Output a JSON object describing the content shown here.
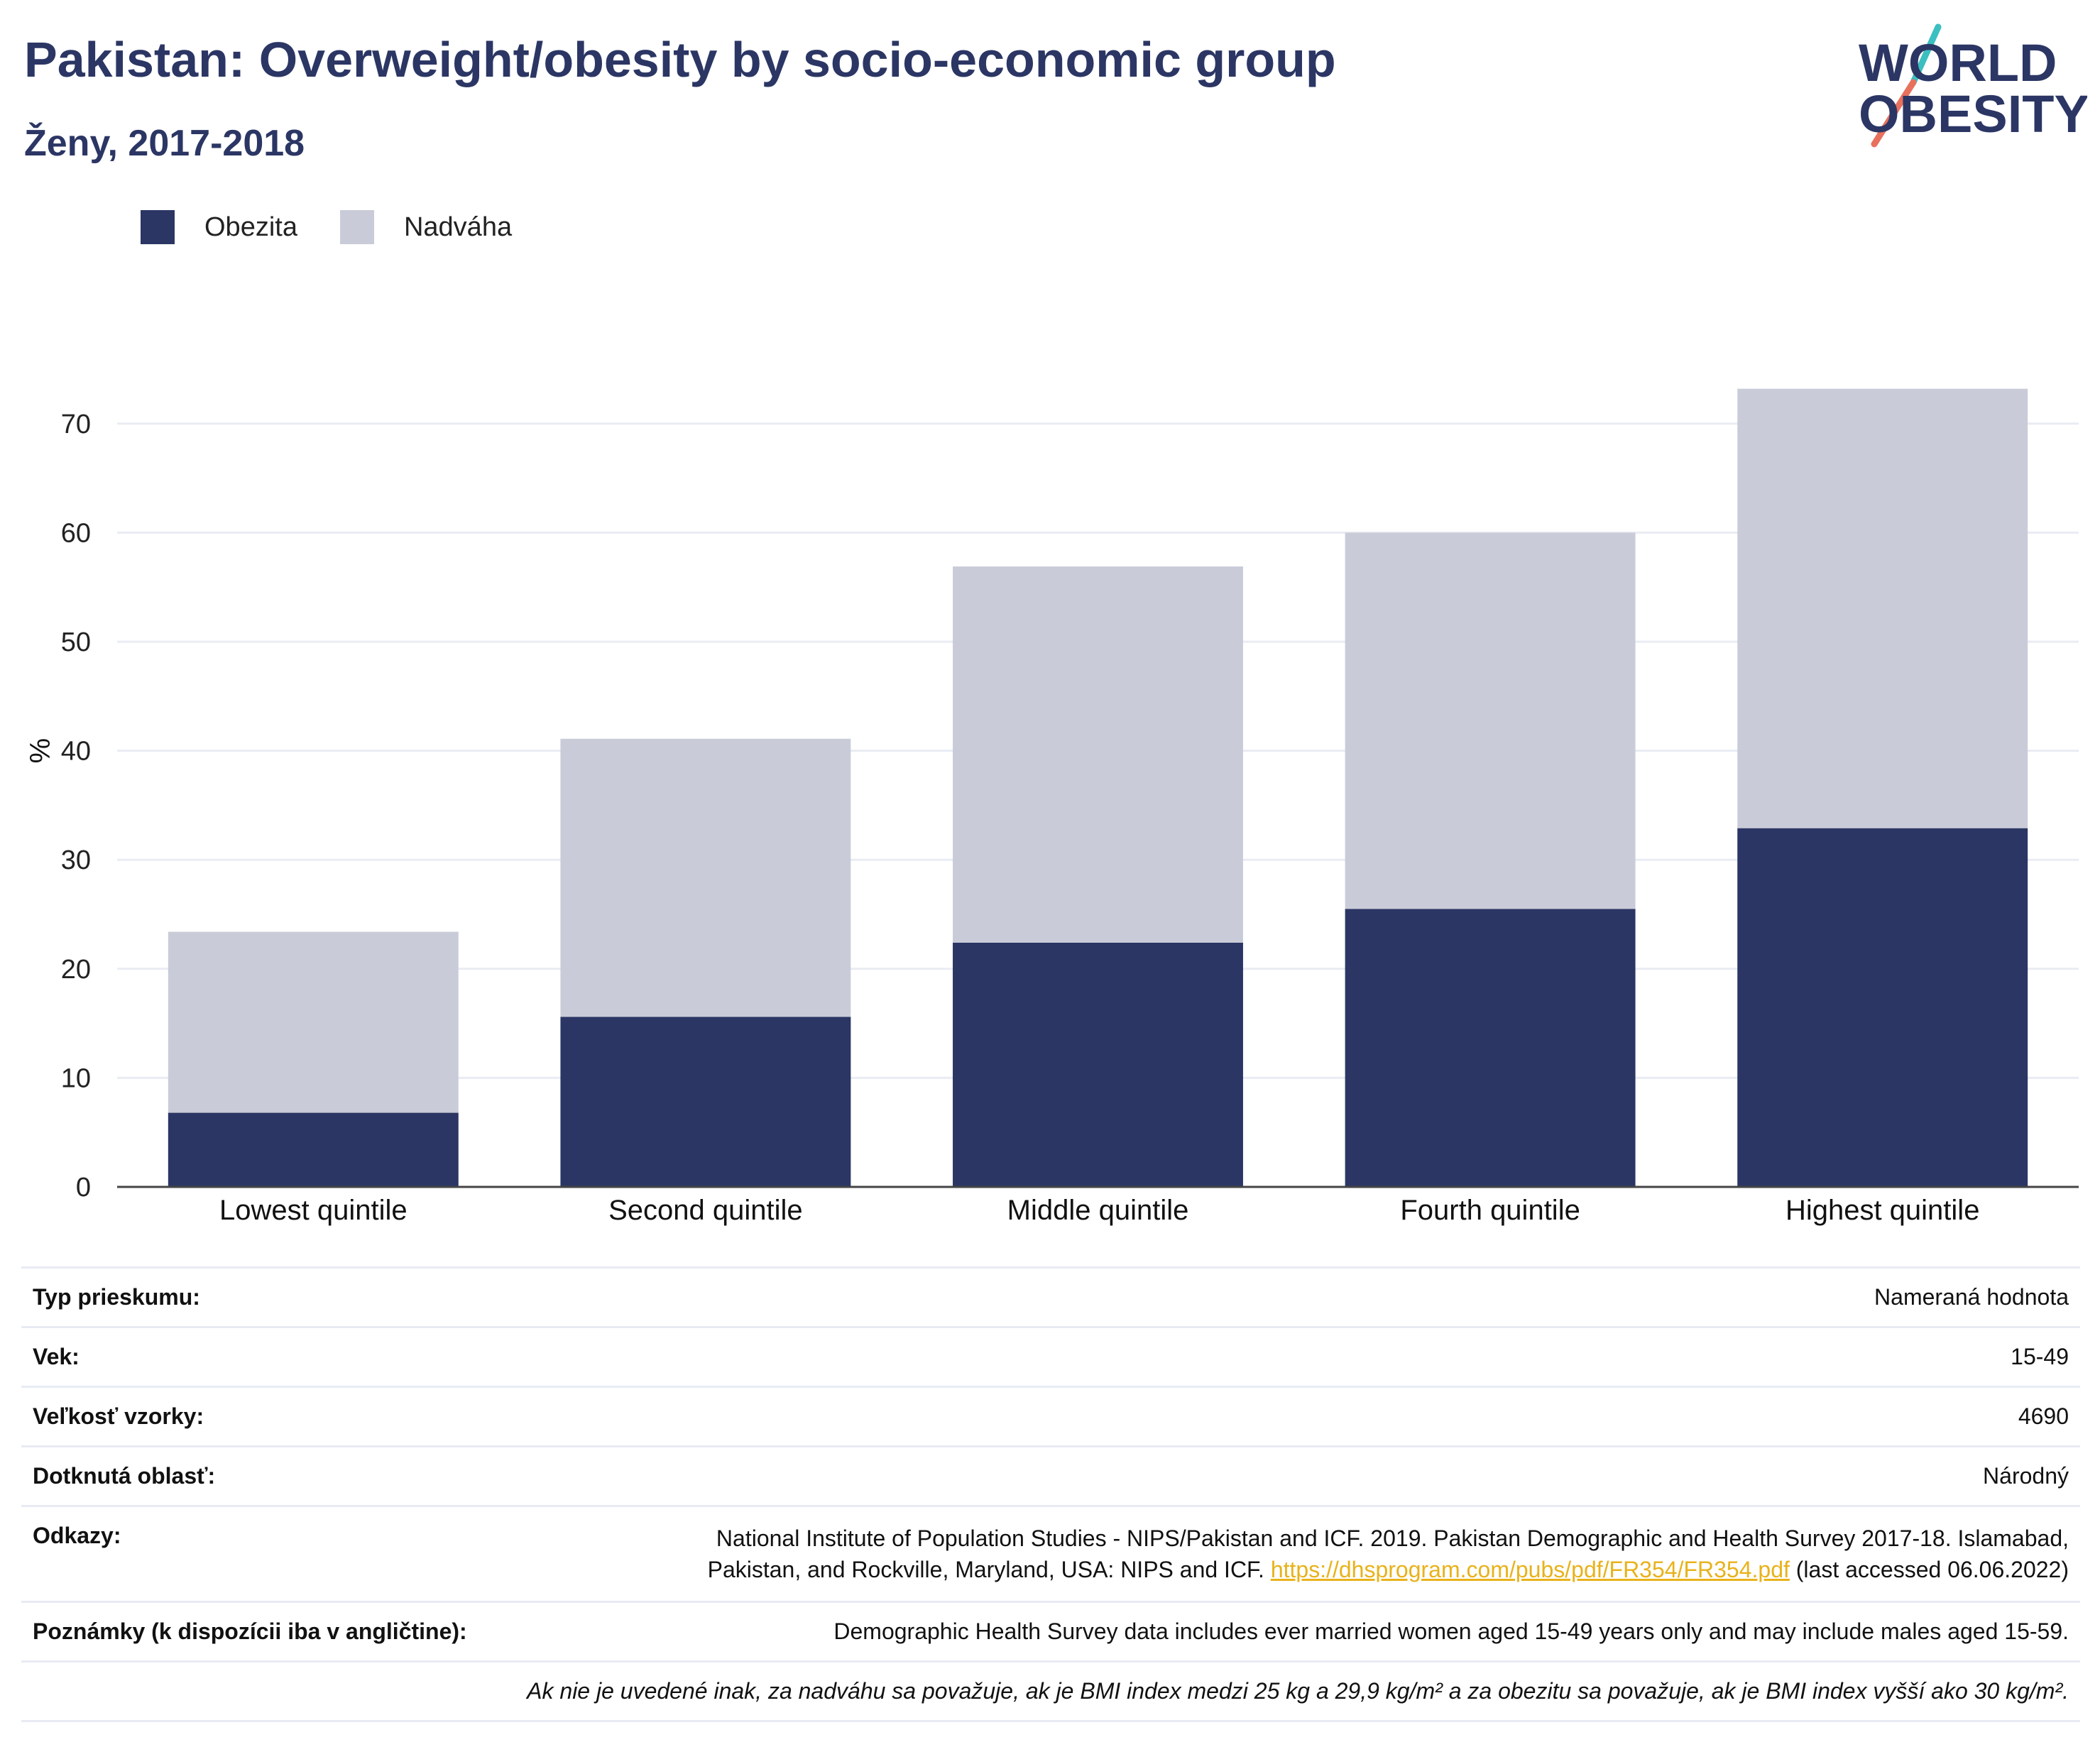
{
  "header": {
    "title": "Pakistan: Overweight/obesity by socio-economic group",
    "subtitle": "Ženy, 2017-2018"
  },
  "logo": {
    "line1": "WORLD",
    "line2": "OBESITY",
    "colors": {
      "text": "#2b3664",
      "slash_top": "#3cbfc0",
      "slash_bottom": "#e8715e"
    }
  },
  "legend": [
    {
      "label": "Obezita",
      "color": "#2b3664"
    },
    {
      "label": "Nadváha",
      "color": "#c9ccd8"
    }
  ],
  "chart_data": {
    "type": "bar",
    "stacked": true,
    "categories": [
      "Lowest quintile",
      "Second quintile",
      "Middle quintile",
      "Fourth quintile",
      "Highest quintile"
    ],
    "series": [
      {
        "name": "Obezita",
        "color": "#2b3664",
        "values": [
          6.8,
          15.6,
          22.4,
          25.5,
          32.9
        ]
      },
      {
        "name": "Nadváha",
        "color": "#c9ccd8",
        "values": [
          16.6,
          25.5,
          34.5,
          34.5,
          40.3
        ]
      }
    ],
    "xlabel": "",
    "ylabel": "%",
    "ylim": [
      0,
      75
    ],
    "yticks": [
      0,
      10,
      20,
      30,
      40,
      50,
      60,
      70
    ],
    "grid": true,
    "legend_position": "top-left"
  },
  "info": {
    "rows": [
      {
        "label": "Typ prieskumu:",
        "value": "Nameraná hodnota"
      },
      {
        "label": "Vek:",
        "value": "15-49"
      },
      {
        "label": "Veľkosť vzorky:",
        "value": "4690"
      },
      {
        "label": "Dotknutá oblasť:",
        "value": "Národný"
      }
    ],
    "references": {
      "label": "Odkazy:",
      "text_line1": "National Institute of Population Studies - NIPS/Pakistan and ICF. 2019. Pakistan Demographic and Health Survey 2017-18. Islamabad,",
      "text_line2": "Pakistan, and Rockville, Maryland, USA: NIPS and ICF.",
      "link": "https://dhsprogram.com/pubs/pdf/FR354/FR354.pdf",
      "suffix": "(last accessed 06.06.2022)"
    },
    "notes": {
      "label": "Poznámky (k dispozícii iba v angličtine):",
      "value": "Demographic Health Survey data includes ever married women aged 15-49 years only and may include males aged 15-59."
    },
    "footnote": "Ak nie je uvedené inak, za nadváhu sa považuje, ak je BMI index medzi 25 kg a 29,9 kg/m² a za obezitu sa považuje, ak je BMI index vyšší ako 30 kg/m²."
  }
}
